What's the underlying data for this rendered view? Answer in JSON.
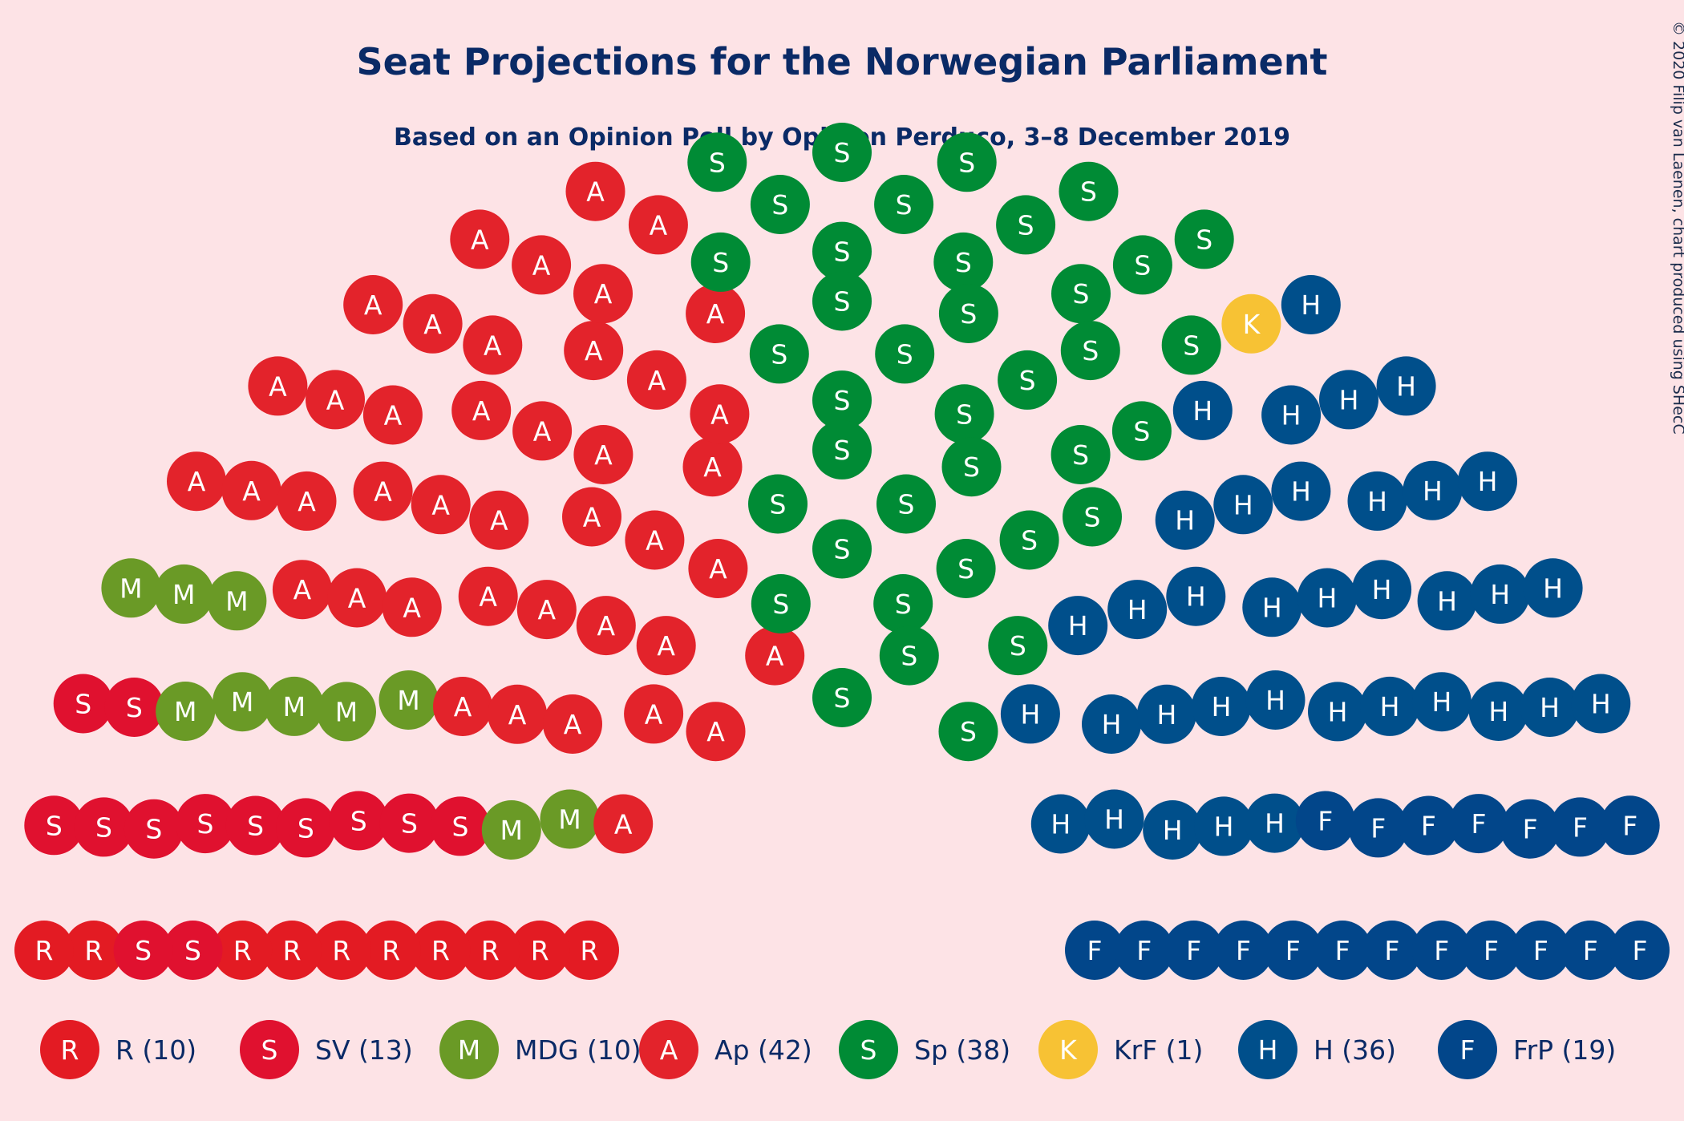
{
  "title": "Seat Projections for the Norwegian Parliament",
  "subtitle": "Based on an Opinion Poll by Opinion Perduco, 3–8 December 2019",
  "copyright": "© 2020 Filip van Laenen, chart produced using SHecC",
  "chart_data": {
    "type": "parliament",
    "total_seats": 169,
    "parties": [
      {
        "name": "R",
        "letter": "R",
        "seats": 10,
        "label": "R (10)",
        "color": "#e31b23"
      },
      {
        "name": "SV",
        "letter": "S",
        "seats": 13,
        "label": "SV (13)",
        "color": "#e0112f"
      },
      {
        "name": "MDG",
        "letter": "M",
        "seats": 10,
        "label": "MDG (10)",
        "color": "#6a9a26"
      },
      {
        "name": "Ap",
        "letter": "A",
        "seats": 42,
        "label": "Ap (42)",
        "color": "#e3232b"
      },
      {
        "name": "Sp",
        "letter": "S",
        "seats": 38,
        "label": "Sp (38)",
        "color": "#008b35"
      },
      {
        "name": "KrF",
        "letter": "K",
        "seats": 1,
        "label": "KrF (1)",
        "color": "#f7c234"
      },
      {
        "name": "H",
        "letter": "H",
        "seats": 36,
        "label": "H (36)",
        "color": "#004f8b"
      },
      {
        "name": "FrP",
        "letter": "F",
        "seats": 19,
        "label": "FrP (19)",
        "color": "#02468a"
      }
    ]
  }
}
